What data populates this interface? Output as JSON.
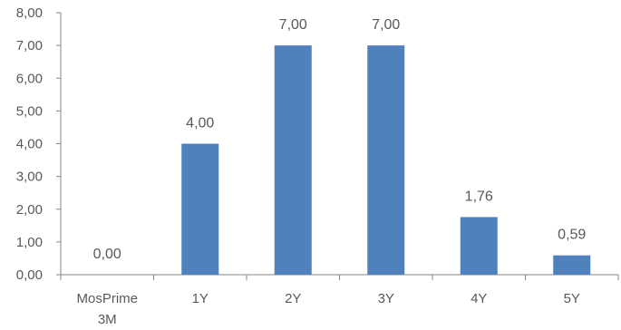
{
  "chart_data": {
    "type": "bar",
    "categories": [
      [
        "MosPrime",
        "3M"
      ],
      [
        "1Y"
      ],
      [
        "2Y"
      ],
      [
        "3Y"
      ],
      [
        "4Y"
      ],
      [
        "5Y"
      ]
    ],
    "values": [
      0.0,
      4.0,
      7.0,
      7.0,
      1.76,
      0.59
    ],
    "value_labels": [
      "0,00",
      "4,00",
      "7,00",
      "7,00",
      "1,76",
      "0,59"
    ],
    "y_ticks": [
      "0,00",
      "1,00",
      "2,00",
      "3,00",
      "4,00",
      "5,00",
      "6,00",
      "7,00",
      "8,00"
    ],
    "ylim": [
      0,
      8
    ],
    "title": "",
    "xlabel": "",
    "ylabel": "",
    "grid": false,
    "legend": "none",
    "bar_color": "#4F81BD",
    "axis_color": "#868686",
    "text_color": "#595959"
  }
}
